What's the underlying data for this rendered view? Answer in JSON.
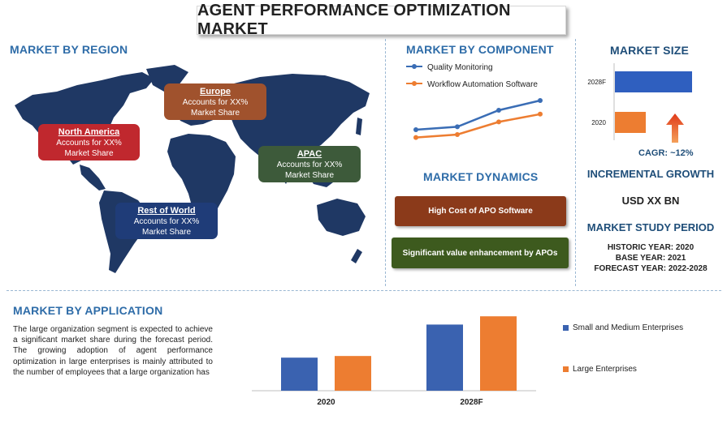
{
  "title": "AGENT PERFORMANCE OPTIMIZATION MARKET",
  "region": {
    "heading": "MARKET BY REGION",
    "boxes": [
      {
        "name": "North America",
        "text": "Accounts for XX%",
        "text2": "Market Share",
        "color": "#c0282e"
      },
      {
        "name": "Europe",
        "text": "Accounts for XX%",
        "text2": "Market Share",
        "color": "#a0522d"
      },
      {
        "name": "APAC",
        "text": "Accounts for XX%",
        "text2": "Market Share",
        "color": "#3d5a3a"
      },
      {
        "name": "Rest of World",
        "text": "Accounts for XX%",
        "text2": "Market Share",
        "color": "#1f3c78"
      }
    ]
  },
  "component": {
    "heading": "MARKET BY COMPONENT",
    "chart_data": {
      "type": "line",
      "x": [
        1,
        2,
        3,
        4
      ],
      "series": [
        {
          "name": "Quality Monitoring",
          "values": [
            2.0,
            2.3,
            4.0,
            5.0
          ],
          "color": "#3a6db5"
        },
        {
          "name": "Workflow Automation Software",
          "values": [
            1.2,
            1.5,
            2.8,
            3.6
          ],
          "color": "#ed7d31"
        }
      ],
      "ylim": [
        0,
        6
      ]
    }
  },
  "dynamics": {
    "heading": "MARKET DYNAMICS",
    "items": [
      {
        "label": "High Cost of APO Software",
        "color": "#8b3a1a"
      },
      {
        "label": "Significant value enhancement by APOs",
        "color": "#3d5a1e"
      }
    ]
  },
  "size": {
    "heading": "MARKET SIZE",
    "chart_data": {
      "type": "bar",
      "orientation": "horizontal",
      "categories": [
        "2028F",
        "2020"
      ],
      "values": [
        10,
        4
      ],
      "colors": [
        "#2f5fbf",
        "#ed7d31"
      ]
    },
    "cagr": "CAGR:  ~12%",
    "incremental_heading": "INCREMENTAL GROWTH",
    "incremental_value": "USD XX BN",
    "study_heading": "MARKET STUDY PERIOD",
    "historic": "HISTORIC YEAR: 2020",
    "base": "BASE YEAR: 2021",
    "forecast": "FORECAST YEAR: 2022-2028"
  },
  "application": {
    "heading": "MARKET BY APPLICATION",
    "paragraph": "The large organization segment is expected to achieve a significant market share during the forecast period. The growing adoption of agent performance optimization in large enterprises is mainly attributed to the number of employees that a large organization has",
    "chart_data": {
      "type": "bar",
      "categories": [
        "2020",
        "2028F"
      ],
      "series": [
        {
          "name": "Small and Medium Enterprises",
          "values": [
            4,
            8
          ],
          "color": "#3a62b0"
        },
        {
          "name": "Large Enterprises",
          "values": [
            4.2,
            9
          ],
          "color": "#ed7d31"
        }
      ],
      "ylim": [
        0,
        10
      ]
    }
  }
}
